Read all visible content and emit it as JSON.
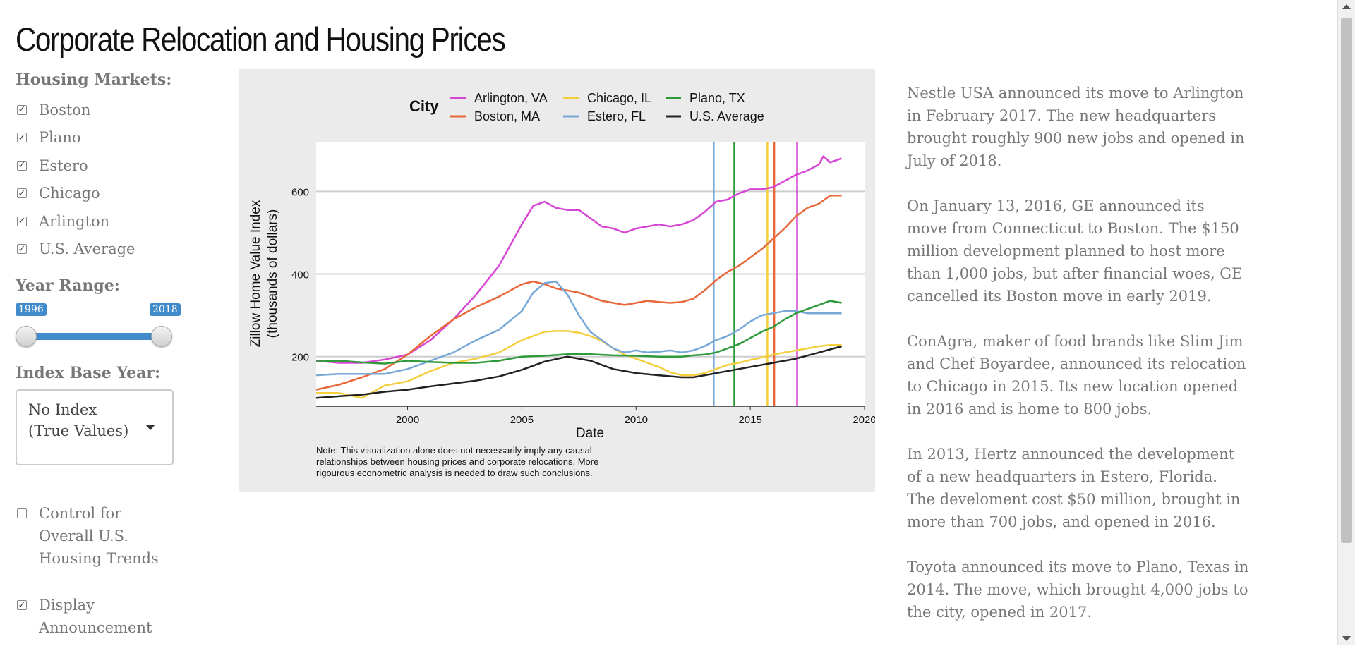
{
  "title": "Corporate Relocation and Housing Prices",
  "sidebar": {
    "markets_label": "Housing Markets:",
    "markets": [
      {
        "label": "Boston",
        "checked": true
      },
      {
        "label": "Plano",
        "checked": true
      },
      {
        "label": "Estero",
        "checked": true
      },
      {
        "label": "Chicago",
        "checked": true
      },
      {
        "label": "Arlington",
        "checked": true
      },
      {
        "label": "U.S. Average",
        "checked": true
      }
    ],
    "year_range_label": "Year Range:",
    "year_min": "1996",
    "year_max": "2018",
    "index_label": "Index Base Year:",
    "index_value": "No Index (True Values)",
    "control_label": "Control for Overall U.S. Housing Trends",
    "control_checked": false,
    "announce_label": "Display Announcement",
    "announce_checked": true
  },
  "chart_data": {
    "type": "line",
    "xlabel": "Date",
    "ylabel": "Zillow Home Value Index",
    "ylabel2": "(thousands of dollars)",
    "legend_title": "City",
    "legend_position": "top",
    "xlim": [
      1996,
      2020
    ],
    "ylim": [
      80,
      720
    ],
    "xticks": [
      "2000",
      "2005",
      "2010",
      "2015",
      "2020"
    ],
    "yticks": [
      "200",
      "400",
      "600"
    ],
    "note": "Note: This visualization alone does not necessarily imply any causal relationships between housing prices and corporate relocations. More rigourous econometric analysis is needed to draw such conclusions.",
    "vlines": [
      {
        "x": 2013.4,
        "color": "#77a8d6"
      },
      {
        "x": 2014.3,
        "color": "#2e9a3a"
      },
      {
        "x": 2015.75,
        "color": "#f3cf3e"
      },
      {
        "x": 2016.05,
        "color": "#e8683a"
      },
      {
        "x": 2017.05,
        "color": "#d645d3"
      }
    ],
    "series": [
      {
        "name": "Arlington, VA",
        "color": "#d645d3",
        "x": [
          1996,
          1997,
          1998,
          1999,
          2000,
          2001,
          2002,
          2003,
          2004,
          2005,
          2005.5,
          2006,
          2006.5,
          2007,
          2007.5,
          2008,
          2008.5,
          2009,
          2009.5,
          2010,
          2010.5,
          2011,
          2011.5,
          2012,
          2012.5,
          2013,
          2013.5,
          2014,
          2014.5,
          2015,
          2015.5,
          2016,
          2016.5,
          2017,
          2017.5,
          2018,
          2018.2,
          2018.5,
          2019
        ],
        "y": [
          190,
          185,
          185,
          193,
          205,
          240,
          290,
          350,
          420,
          520,
          565,
          575,
          560,
          555,
          555,
          535,
          515,
          510,
          500,
          510,
          515,
          520,
          515,
          520,
          530,
          550,
          575,
          580,
          595,
          605,
          605,
          610,
          625,
          640,
          650,
          665,
          685,
          670,
          680
        ]
      },
      {
        "name": "Boston, MA",
        "color": "#e8683a",
        "x": [
          1996,
          1997,
          1998,
          1999,
          2000,
          2001,
          2002,
          2003,
          2004,
          2005,
          2005.5,
          2006,
          2006.5,
          2007,
          2007.5,
          2008,
          2008.5,
          2009,
          2009.5,
          2010,
          2010.5,
          2011,
          2011.5,
          2012,
          2012.5,
          2013,
          2013.5,
          2014,
          2014.5,
          2015,
          2015.5,
          2016,
          2016.5,
          2017,
          2017.5,
          2018,
          2018.5,
          2019
        ],
        "y": [
          120,
          132,
          150,
          170,
          205,
          250,
          290,
          320,
          345,
          375,
          382,
          375,
          365,
          360,
          355,
          345,
          335,
          330,
          325,
          330,
          335,
          332,
          330,
          332,
          340,
          360,
          385,
          405,
          420,
          440,
          460,
          485,
          510,
          540,
          560,
          570,
          590,
          590
        ]
      },
      {
        "name": "Chicago, IL",
        "color": "#f3cf3e",
        "x": [
          1996,
          1997,
          1998,
          1999,
          2000,
          2001,
          2002,
          2003,
          2004,
          2005,
          2006,
          2006.5,
          2007,
          2007.5,
          2008,
          2008.5,
          2009,
          2009.5,
          2010,
          2010.5,
          2011,
          2011.5,
          2012,
          2012.5,
          2013,
          2013.5,
          2014,
          2014.5,
          2015,
          2015.5,
          2016,
          2016.5,
          2017,
          2017.5,
          2018,
          2018.5,
          2019
        ],
        "y": [
          112,
          112,
          100,
          130,
          140,
          165,
          185,
          195,
          210,
          240,
          260,
          262,
          262,
          258,
          250,
          238,
          220,
          205,
          195,
          185,
          175,
          162,
          155,
          155,
          160,
          170,
          180,
          185,
          192,
          198,
          205,
          210,
          215,
          220,
          225,
          228,
          228
        ]
      },
      {
        "name": "Estero, FL",
        "color": "#77a8d6",
        "x": [
          1996,
          1997,
          1998,
          1999,
          2000,
          2001,
          2002,
          2003,
          2004,
          2005,
          2005.5,
          2006,
          2006.5,
          2007,
          2007.5,
          2008,
          2008.5,
          2009,
          2009.5,
          2010,
          2010.5,
          2011,
          2011.5,
          2012,
          2012.5,
          2013,
          2013.5,
          2014,
          2014.5,
          2015,
          2015.5,
          2016,
          2016.5,
          2017,
          2017.5,
          2018,
          2018.5,
          2019
        ],
        "y": [
          155,
          158,
          158,
          158,
          170,
          190,
          210,
          240,
          265,
          310,
          355,
          378,
          382,
          350,
          300,
          260,
          240,
          220,
          210,
          215,
          210,
          212,
          215,
          210,
          215,
          225,
          240,
          250,
          265,
          285,
          300,
          305,
          310,
          310,
          305,
          305,
          305,
          305
        ]
      },
      {
        "name": "Plano, TX",
        "color": "#2e9a3a",
        "x": [
          1996,
          1997,
          1998,
          1999,
          2000,
          2001,
          2002,
          2003,
          2004,
          2005,
          2006,
          2007,
          2008,
          2009,
          2010,
          2011,
          2012,
          2012.5,
          2013,
          2013.5,
          2014,
          2014.5,
          2015,
          2015.5,
          2016,
          2016.5,
          2017,
          2017.5,
          2018,
          2018.5,
          2019
        ],
        "y": [
          188,
          190,
          186,
          183,
          190,
          187,
          185,
          185,
          190,
          200,
          202,
          206,
          206,
          203,
          202,
          200,
          200,
          203,
          205,
          210,
          220,
          230,
          245,
          260,
          272,
          290,
          305,
          315,
          325,
          335,
          330
        ]
      },
      {
        "name": "U.S. Average",
        "color": "#222222",
        "x": [
          1996,
          1997,
          1998,
          1999,
          2000,
          2001,
          2002,
          2003,
          2004,
          2005,
          2006,
          2007,
          2008,
          2009,
          2010,
          2011,
          2012,
          2012.5,
          2013,
          2014,
          2015,
          2016,
          2017,
          2018,
          2019
        ],
        "y": [
          100,
          104,
          108,
          115,
          120,
          128,
          135,
          142,
          152,
          168,
          188,
          200,
          190,
          170,
          160,
          155,
          150,
          150,
          155,
          165,
          175,
          185,
          195,
          210,
          225
        ]
      }
    ]
  },
  "text": {
    "p1": "Nestle USA announced its move to Arlington in February 2017. The new headquarters brought roughly 900 new jobs and opened in July of 2018.",
    "p2": "On January 13, 2016, GE announced its move from Connecticut to Boston. The $150 million development planned to host more than 1,000 jobs, but after financial woes, GE cancelled its Boston move in early 2019.",
    "p3": "ConAgra, maker of food brands like Slim Jim and Chef Boyardee, announced its relocation to Chicago in 2015. Its new location opened in 2016 and is home to 800 jobs.",
    "p4": "In 2013, Hertz announced the development of a new headquarters in Estero, Florida. The develoment cost $50 million, brought in more than 700 jobs, and opened in 2016.",
    "p5": "Toyota announced its move to Plano, Texas in 2014. The move, which brought 4,000 jobs to the city, opened in 2017."
  }
}
